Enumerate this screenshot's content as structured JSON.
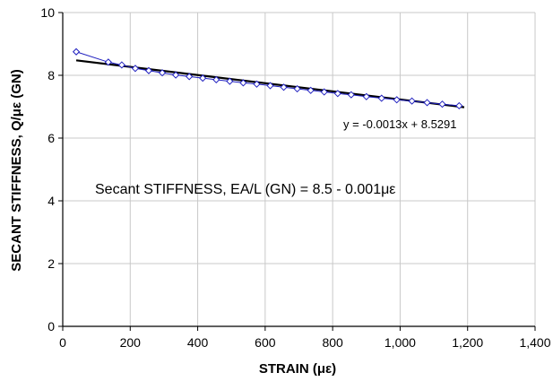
{
  "chart_data": {
    "type": "scatter",
    "title": "",
    "xlabel": "STRAIN (με)",
    "ylabel": "SECANT STIFFNESS, Q/με  (GN)",
    "xlim": [
      0,
      1400
    ],
    "ylim": [
      0,
      10
    ],
    "xticks": [
      "0",
      "200",
      "400",
      "600",
      "800",
      "1,000",
      "1,200",
      "1,400"
    ],
    "yticks": [
      "0",
      "2",
      "4",
      "6",
      "8",
      "10"
    ],
    "grid": true,
    "colors": {
      "data": "#1f1fbf",
      "trendline": "#000000",
      "grid": "#c8c8c8"
    },
    "series": [
      {
        "marker": "diamond-open",
        "x": [
          40,
          135,
          175,
          215,
          255,
          295,
          335,
          375,
          415,
          455,
          495,
          535,
          575,
          615,
          655,
          695,
          735,
          775,
          815,
          855,
          900,
          945,
          990,
          1035,
          1080,
          1125,
          1175
        ],
        "y": [
          8.75,
          8.42,
          8.33,
          8.22,
          8.15,
          8.08,
          8.01,
          7.96,
          7.91,
          7.86,
          7.81,
          7.76,
          7.72,
          7.67,
          7.62,
          7.57,
          7.52,
          7.47,
          7.42,
          7.38,
          7.32,
          7.27,
          7.22,
          7.18,
          7.13,
          7.08,
          7.03
        ]
      }
    ],
    "trendline": {
      "slope": -0.0013,
      "intercept": 8.5291,
      "x_range": [
        40,
        1190
      ]
    },
    "annotations": {
      "equation": "y = -0.0013x + 8.5291",
      "secant": "Secant STIFFNESS, EA/L  (GN)  = 8.5 - 0.001με"
    }
  }
}
